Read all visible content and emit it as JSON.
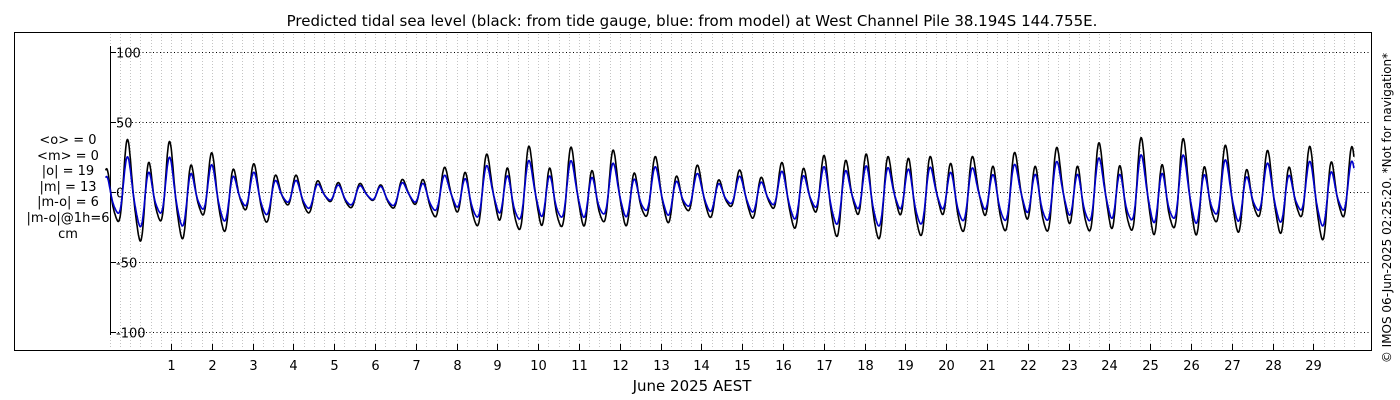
{
  "chart_data": {
    "type": "line",
    "title": "Predicted tidal sea level (black: from tide gauge, blue: from model) at West Channel Pile 38.194S 144.755E.",
    "xlabel": "June 2025 AEST",
    "ylabel": "",
    "x_unit": "day of June 2025",
    "xlim": [
      -0.7,
      30.0
    ],
    "ylim": [
      -110,
      110
    ],
    "x_ticks": [
      1,
      2,
      3,
      4,
      5,
      6,
      7,
      8,
      9,
      10,
      11,
      12,
      13,
      14,
      15,
      16,
      17,
      18,
      19,
      20,
      21,
      22,
      23,
      24,
      25,
      26,
      27,
      28,
      29
    ],
    "x_tick_labels": [
      "1",
      "2",
      "3",
      "4",
      "5",
      "6",
      "7",
      "8",
      "9",
      "10",
      "11",
      "12",
      "13",
      "14",
      "15",
      "16",
      "17",
      "18",
      "19",
      "20",
      "21",
      "22",
      "23",
      "24",
      "25",
      "26",
      "27",
      "28",
      "29"
    ],
    "y_ticks": [
      -100,
      -50,
      0,
      50,
      100
    ],
    "y_tick_labels": [
      "-100",
      "-50",
      "0",
      "50",
      "100"
    ],
    "grid": "dotted",
    "series": [
      {
        "name": "tide gauge",
        "color": "#000000",
        "x": [
          -0.6,
          0.0,
          0.5,
          1.0,
          1.5,
          2.0,
          2.5,
          3.0,
          3.5,
          4.0,
          4.5,
          5.0,
          5.5,
          6.0,
          6.5,
          7.0,
          7.5,
          8.0,
          8.5,
          9.0,
          9.5,
          10.0,
          10.5,
          11.0,
          11.5,
          12.0,
          12.5,
          13.0,
          13.5,
          14.0,
          14.5,
          15.0,
          15.5,
          16.0,
          16.5,
          17.0,
          17.5,
          18.0,
          18.5,
          19.0,
          19.5,
          20.0,
          20.5,
          21.0,
          21.5,
          22.0,
          22.5,
          23.0,
          23.5,
          24.0,
          24.5,
          25.0,
          25.5,
          26.0,
          26.5,
          27.0,
          27.5,
          28.0,
          28.5,
          29.0,
          29.5,
          30.0
        ],
        "amplitude": [
          30,
          35,
          36,
          34,
          31,
          28,
          25,
          22,
          18,
          15,
          12,
          10,
          9,
          8,
          10,
          13,
          17,
          21,
          25,
          28,
          30,
          31,
          30,
          29,
          28,
          27,
          25,
          23,
          21,
          18,
          16,
          16,
          18,
          22,
          25,
          28,
          30,
          31,
          31,
          30,
          29,
          28,
          27,
          27,
          28,
          29,
          30,
          31,
          32,
          33,
          34,
          36,
          35,
          34,
          32,
          30,
          28,
          28,
          30,
          32,
          33,
          33
        ]
      },
      {
        "name": "model",
        "color": "#0000cc",
        "x": [
          -0.6,
          0.0,
          0.5,
          1.0,
          1.5,
          2.0,
          2.5,
          3.0,
          3.5,
          4.0,
          4.5,
          5.0,
          5.5,
          6.0,
          6.5,
          7.0,
          7.5,
          8.0,
          8.5,
          9.0,
          9.5,
          10.0,
          10.5,
          11.0,
          11.5,
          12.0,
          12.5,
          13.0,
          13.5,
          14.0,
          14.5,
          15.0,
          15.5,
          16.0,
          16.5,
          17.0,
          17.5,
          18.0,
          18.5,
          19.0,
          19.5,
          20.0,
          20.5,
          21.0,
          21.5,
          22.0,
          22.5,
          23.0,
          23.5,
          24.0,
          24.5,
          25.0,
          25.5,
          26.0,
          26.5,
          27.0,
          27.5,
          28.0,
          28.5,
          29.0,
          29.5,
          30.0
        ],
        "amplitude": [
          21,
          24,
          25,
          24,
          22,
          20,
          18,
          16,
          13,
          11,
          9,
          8,
          7,
          7,
          8,
          10,
          12,
          15,
          18,
          20,
          21,
          22,
          21,
          21,
          20,
          19,
          18,
          17,
          15,
          13,
          12,
          12,
          13,
          16,
          18,
          20,
          21,
          22,
          22,
          21,
          21,
          20,
          19,
          19,
          20,
          21,
          21,
          22,
          23,
          23,
          24,
          25,
          25,
          24,
          23,
          21,
          20,
          20,
          21,
          22,
          23,
          23
        ]
      }
    ],
    "stats_cm": {
      "lines": [
        "<o> = 0",
        "<m> = 0",
        "|o| = 19",
        "|m| = 13",
        "|m-o| = 6",
        "|m-o|@1h=6",
        "cm"
      ]
    },
    "credit": "© IMOS 06-Jun-2025 02:25:20. *Not for navigation*"
  }
}
